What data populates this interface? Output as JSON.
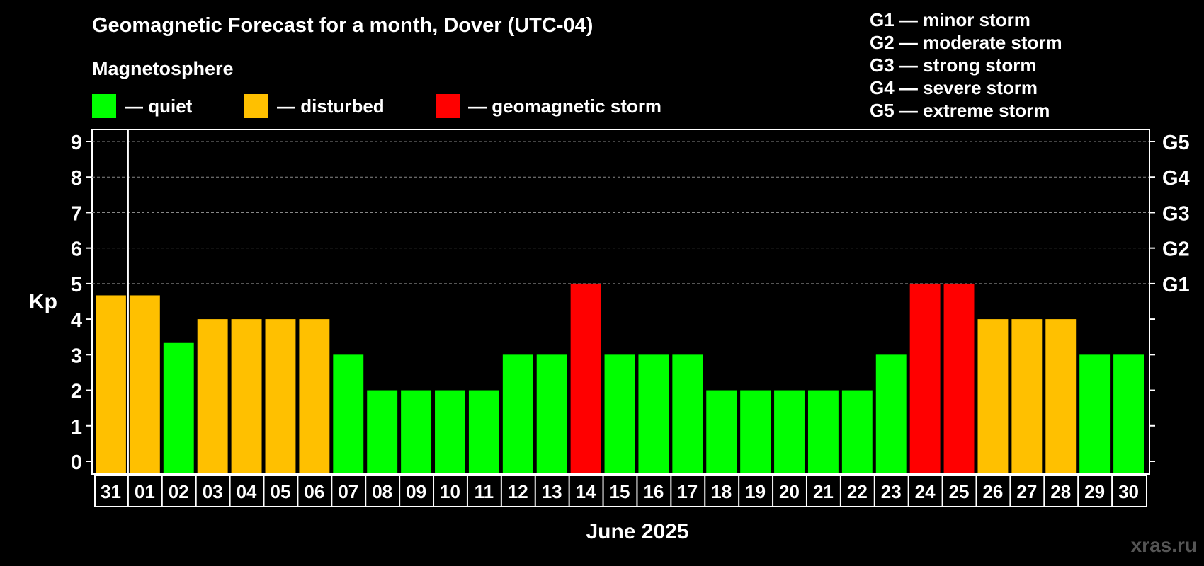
{
  "chart_data": {
    "type": "bar",
    "title": "Geomagnetic Forecast for a month, Dover (UTC-04)",
    "subtitle": "Magnetosphere",
    "legend": [
      {
        "label": "— quiet",
        "color": "#00ff00"
      },
      {
        "label": "— disturbed",
        "color": "#ffc000"
      },
      {
        "label": "— geomagnetic storm",
        "color": "#ff0000"
      }
    ],
    "storm_legend": [
      "G1 — minor storm",
      "G2 — moderate storm",
      "G3 — strong storm",
      "G4 — severe storm",
      "G5 — extreme storm"
    ],
    "ylabel": "Kp",
    "xlabel": "June 2025",
    "ylim": [
      0,
      9
    ],
    "y_ticks": [
      "0",
      "1",
      "2",
      "3",
      "4",
      "5",
      "6",
      "7",
      "8",
      "9"
    ],
    "right_ticks": [
      {
        "kp": 5,
        "label": "G1"
      },
      {
        "kp": 6,
        "label": "G2"
      },
      {
        "kp": 7,
        "label": "G3"
      },
      {
        "kp": 8,
        "label": "G4"
      },
      {
        "kp": 9,
        "label": "G5"
      }
    ],
    "categories": [
      "31",
      "01",
      "02",
      "03",
      "04",
      "05",
      "06",
      "07",
      "08",
      "09",
      "10",
      "11",
      "12",
      "13",
      "14",
      "15",
      "16",
      "17",
      "18",
      "19",
      "20",
      "21",
      "22",
      "23",
      "24",
      "25",
      "26",
      "27",
      "28",
      "29",
      "30"
    ],
    "values": [
      4.67,
      4.67,
      3.33,
      4,
      4,
      4,
      4,
      3,
      2,
      2,
      2,
      2,
      3,
      3,
      5,
      3,
      3,
      3,
      2,
      2,
      2,
      2,
      2,
      3,
      5,
      5,
      4,
      4,
      4,
      3,
      3
    ],
    "levels": [
      "disturbed",
      "disturbed",
      "quiet",
      "disturbed",
      "disturbed",
      "disturbed",
      "disturbed",
      "quiet",
      "quiet",
      "quiet",
      "quiet",
      "quiet",
      "quiet",
      "quiet",
      "storm",
      "quiet",
      "quiet",
      "quiet",
      "quiet",
      "quiet",
      "quiet",
      "quiet",
      "quiet",
      "quiet",
      "storm",
      "storm",
      "disturbed",
      "disturbed",
      "disturbed",
      "quiet",
      "quiet"
    ],
    "level_colors": {
      "quiet": "#00ff00",
      "disturbed": "#ffc000",
      "storm": "#ff0000"
    }
  },
  "watermark": "xras.ru"
}
